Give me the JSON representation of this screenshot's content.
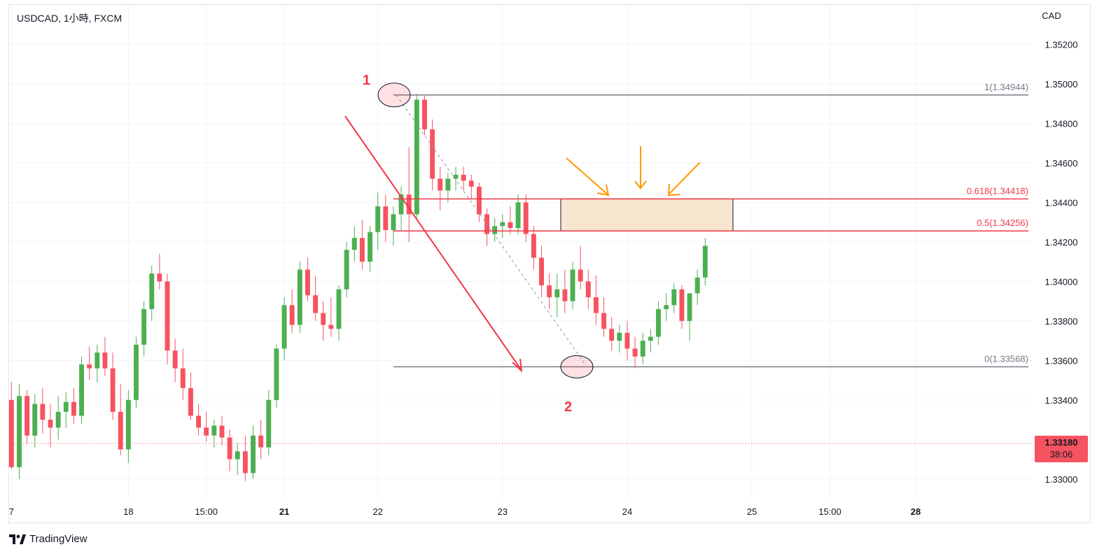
{
  "header": {
    "symbol_line": "USDCAD, 1小時, FXCM"
  },
  "currency": "CAD",
  "brand": {
    "name": "TradingView"
  },
  "price_tag": {
    "price": "1.33180",
    "countdown": "38:06",
    "color": "#f7525f"
  },
  "colors": {
    "up": "#4caf50",
    "down": "#f7525f",
    "grid": "#f0f3fa",
    "fib_level": "#f23645",
    "fib_bound": "#787b86",
    "arrow_orange": "#ff9800"
  },
  "chart_data": {
    "type": "candlestick",
    "title": "USDCAD, 1小時, FXCM",
    "ylabel": "CAD",
    "ylim": [
      1.329,
      1.354
    ],
    "y_ticks": [
      "1.35200",
      "1.35000",
      "1.34800",
      "1.34600",
      "1.34400",
      "1.34200",
      "1.34000",
      "1.33800",
      "1.33600",
      "1.33400",
      "1.33000"
    ],
    "x_ticks": [
      {
        "label": "7",
        "bold": false,
        "t": 0
      },
      {
        "label": "18",
        "bold": false,
        "t": 15
      },
      {
        "label": "15:00",
        "bold": false,
        "t": 25
      },
      {
        "label": "21",
        "bold": true,
        "t": 35
      },
      {
        "label": "22",
        "bold": false,
        "t": 47
      },
      {
        "label": "23",
        "bold": false,
        "t": 63
      },
      {
        "label": "24",
        "bold": false,
        "t": 79
      },
      {
        "label": "25",
        "bold": false,
        "t": 95
      },
      {
        "label": "15:00",
        "bold": false,
        "t": 105
      },
      {
        "label": "28",
        "bold": true,
        "t": 116
      }
    ],
    "x_range": [
      -0.3,
      131
    ],
    "candles": [
      [
        1.334,
        1.3349,
        1.3305,
        1.3306
      ],
      [
        1.3306,
        1.3348,
        1.33,
        1.3342
      ],
      [
        1.3342,
        1.3345,
        1.3318,
        1.3322
      ],
      [
        1.3322,
        1.3343,
        1.3316,
        1.3338
      ],
      [
        1.3338,
        1.3346,
        1.3323,
        1.333
      ],
      [
        1.333,
        1.3338,
        1.3316,
        1.3326
      ],
      [
        1.3326,
        1.3342,
        1.332,
        1.3334
      ],
      [
        1.3334,
        1.3344,
        1.3326,
        1.3339
      ],
      [
        1.3339,
        1.3346,
        1.3328,
        1.3332
      ],
      [
        1.3332,
        1.3362,
        1.3328,
        1.3358
      ],
      [
        1.3358,
        1.3367,
        1.335,
        1.3356
      ],
      [
        1.3356,
        1.3368,
        1.3349,
        1.3364
      ],
      [
        1.3364,
        1.3372,
        1.3352,
        1.3356
      ],
      [
        1.3356,
        1.3364,
        1.333,
        1.3334
      ],
      [
        1.3334,
        1.3348,
        1.3312,
        1.3315
      ],
      [
        1.3315,
        1.3345,
        1.3308,
        1.334
      ],
      [
        1.334,
        1.3372,
        1.3336,
        1.3368
      ],
      [
        1.3368,
        1.339,
        1.3362,
        1.3386
      ],
      [
        1.3386,
        1.3408,
        1.338,
        1.3404
      ],
      [
        1.3404,
        1.3414,
        1.3396,
        1.34
      ],
      [
        1.34,
        1.3404,
        1.3358,
        1.3365
      ],
      [
        1.3365,
        1.3371,
        1.3349,
        1.3356
      ],
      [
        1.3356,
        1.3366,
        1.334,
        1.3346
      ],
      [
        1.3346,
        1.3354,
        1.333,
        1.3332
      ],
      [
        1.3332,
        1.3338,
        1.3322,
        1.3326
      ],
      [
        1.3326,
        1.3334,
        1.3319,
        1.3322
      ],
      [
        1.3322,
        1.333,
        1.3316,
        1.3327
      ],
      [
        1.3327,
        1.3332,
        1.3317,
        1.3321
      ],
      [
        1.3321,
        1.3325,
        1.3304,
        1.331
      ],
      [
        1.331,
        1.3318,
        1.3302,
        1.3314
      ],
      [
        1.3314,
        1.3322,
        1.3299,
        1.3303
      ],
      [
        1.3303,
        1.3327,
        1.33,
        1.3322
      ],
      [
        1.3322,
        1.333,
        1.331,
        1.3316
      ],
      [
        1.3316,
        1.3345,
        1.3312,
        1.334
      ],
      [
        1.334,
        1.3368,
        1.3336,
        1.3366
      ],
      [
        1.3366,
        1.3392,
        1.336,
        1.3388
      ],
      [
        1.3388,
        1.3396,
        1.3374,
        1.3378
      ],
      [
        1.3378,
        1.341,
        1.3374,
        1.3406
      ],
      [
        1.3406,
        1.3412,
        1.339,
        1.3393
      ],
      [
        1.3393,
        1.3403,
        1.338,
        1.3384
      ],
      [
        1.3384,
        1.339,
        1.337,
        1.3378
      ],
      [
        1.3378,
        1.3392,
        1.3372,
        1.3376
      ],
      [
        1.3376,
        1.3398,
        1.337,
        1.3396
      ],
      [
        1.3396,
        1.342,
        1.3392,
        1.3416
      ],
      [
        1.3416,
        1.3428,
        1.341,
        1.3422
      ],
      [
        1.3422,
        1.3431,
        1.3406,
        1.341
      ],
      [
        1.341,
        1.3428,
        1.3405,
        1.3425
      ],
      [
        1.3425,
        1.3445,
        1.3416,
        1.3438
      ],
      [
        1.3438,
        1.3444,
        1.342,
        1.3426
      ],
      [
        1.3426,
        1.3438,
        1.3418,
        1.3434
      ],
      [
        1.3434,
        1.3448,
        1.3426,
        1.3444
      ],
      [
        1.3444,
        1.3468,
        1.342,
        1.3434
      ],
      [
        1.3434,
        1.3495,
        1.3432,
        1.3492
      ],
      [
        1.3492,
        1.3494,
        1.3474,
        1.3477
      ],
      [
        1.3477,
        1.3482,
        1.3446,
        1.3452
      ],
      [
        1.3452,
        1.3458,
        1.3436,
        1.3446
      ],
      [
        1.3446,
        1.3455,
        1.344,
        1.3452
      ],
      [
        1.3452,
        1.3458,
        1.3446,
        1.3454
      ],
      [
        1.3454,
        1.3458,
        1.3446,
        1.3451
      ],
      [
        1.3451,
        1.3454,
        1.3442,
        1.3448
      ],
      [
        1.3448,
        1.345,
        1.343,
        1.3434
      ],
      [
        1.3434,
        1.3437,
        1.3418,
        1.3424
      ],
      [
        1.3424,
        1.3432,
        1.342,
        1.3428
      ],
      [
        1.3428,
        1.3434,
        1.3422,
        1.343
      ],
      [
        1.343,
        1.3438,
        1.3424,
        1.3427
      ],
      [
        1.3427,
        1.3444,
        1.3424,
        1.344
      ],
      [
        1.344,
        1.3444,
        1.342,
        1.3424
      ],
      [
        1.3424,
        1.3428,
        1.3406,
        1.3412
      ],
      [
        1.3412,
        1.3418,
        1.3392,
        1.3398
      ],
      [
        1.3398,
        1.3404,
        1.3386,
        1.3392
      ],
      [
        1.3392,
        1.3404,
        1.3382,
        1.3396
      ],
      [
        1.3396,
        1.3406,
        1.3384,
        1.339
      ],
      [
        1.339,
        1.341,
        1.3386,
        1.3406
      ],
      [
        1.3406,
        1.3418,
        1.3396,
        1.34
      ],
      [
        1.34,
        1.3406,
        1.3386,
        1.3392
      ],
      [
        1.3392,
        1.3403,
        1.3378,
        1.3384
      ],
      [
        1.3384,
        1.3392,
        1.3372,
        1.3376
      ],
      [
        1.3376,
        1.3382,
        1.3365,
        1.337
      ],
      [
        1.337,
        1.3378,
        1.3364,
        1.3374
      ],
      [
        1.3374,
        1.338,
        1.336,
        1.3366
      ],
      [
        1.3366,
        1.3372,
        1.3356,
        1.3362
      ],
      [
        1.3362,
        1.3374,
        1.3358,
        1.337
      ],
      [
        1.337,
        1.3376,
        1.3364,
        1.3372
      ],
      [
        1.3372,
        1.339,
        1.3368,
        1.3386
      ],
      [
        1.3386,
        1.3394,
        1.338,
        1.3388
      ],
      [
        1.3388,
        1.3399,
        1.3384,
        1.3396
      ],
      [
        1.3396,
        1.3398,
        1.3376,
        1.338
      ],
      [
        1.338,
        1.3394,
        1.337,
        1.3394
      ],
      [
        1.3394,
        1.3406,
        1.3388,
        1.3402
      ],
      [
        1.3402,
        1.3422,
        1.3398,
        1.3418
      ]
    ],
    "fib": {
      "bound_top": {
        "label": "1(1.34944)",
        "value": 1.34944
      },
      "level_618": {
        "label": "0.618(1.34418)",
        "value": 1.34418
      },
      "level_50": {
        "label": "0.5(1.34256)",
        "value": 1.34256
      },
      "bound_bottom": {
        "label": "0(1.33568)",
        "value": 1.33568
      }
    },
    "annotations": {
      "label_1": "1",
      "label_2": "2"
    }
  }
}
